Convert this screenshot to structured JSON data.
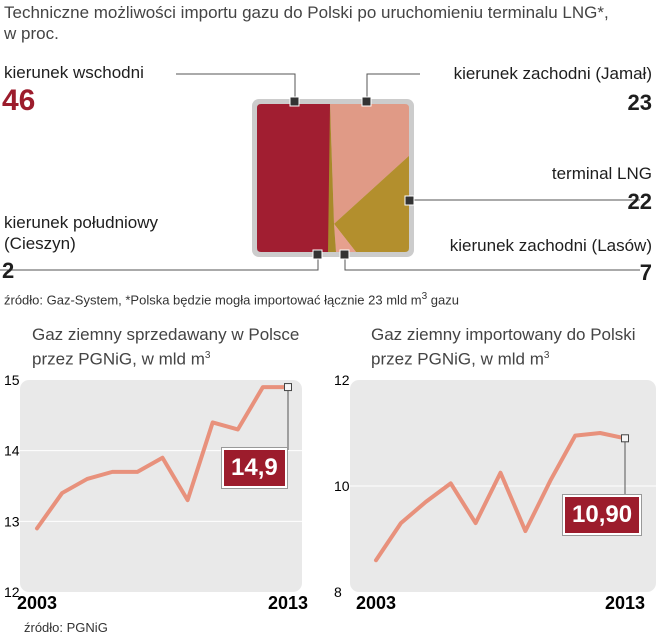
{
  "header": {
    "title_line1": "Techniczne możliwości importu gazu do Polski po uruchomieniu terminalu LNG*,",
    "title_line2": "w proc."
  },
  "pie": {
    "segments": [
      {
        "label": "kierunek wschodni",
        "value": 46,
        "color": "#a11e31"
      },
      {
        "label": "kierunek zachodni (Jamał)",
        "value": 23,
        "color": "#e09a86"
      },
      {
        "label": "terminal LNG",
        "value": 22,
        "color": "#b38f2d"
      },
      {
        "label": "kierunek zachodni (Lasów)",
        "value": 7,
        "color": "#e6a08e"
      },
      {
        "label": "kierunek południowy",
        "label_line2": "(Cieszyn)",
        "value": 2,
        "color": "#a88a2a"
      }
    ],
    "source_prefix": "źródło: Gaz-System, *Polska będzie mogła importować łącznie 23 mld m",
    "source_sup": "3",
    "source_suffix": " gazu"
  },
  "chart_data": [
    {
      "type": "line",
      "title_line1": "Gaz ziemny sprzedawany w Polsce",
      "title_line2": "przez PGNiG, w mld m",
      "title_sup": "3",
      "x": [
        2003,
        2004,
        2005,
        2006,
        2007,
        2008,
        2009,
        2010,
        2011,
        2012,
        2013
      ],
      "values": [
        12.9,
        13.4,
        13.6,
        13.7,
        13.7,
        13.9,
        13.3,
        14.4,
        14.3,
        14.9,
        14.9
      ],
      "ylim": [
        12,
        15
      ],
      "yticks": [
        "12",
        "13",
        "14",
        "15"
      ],
      "xticks": [
        "2003",
        "2013"
      ],
      "callout": "14,9",
      "line_color": "#e8917c"
    },
    {
      "type": "line",
      "title_line1": "Gaz ziemny importowany do Polski",
      "title_line2": "przez PGNiG, w mld m",
      "title_sup": "3",
      "x": [
        2003,
        2004,
        2005,
        2006,
        2007,
        2008,
        2009,
        2010,
        2011,
        2012,
        2013
      ],
      "values": [
        8.6,
        9.3,
        9.7,
        10.05,
        9.3,
        10.25,
        9.15,
        10.1,
        10.95,
        11.0,
        10.9
      ],
      "ylim": [
        8,
        12
      ],
      "yticks": [
        "8",
        "10",
        "12"
      ],
      "xticks": [
        "2003",
        "2013"
      ],
      "callout": "10,90",
      "line_color": "#e8917c"
    }
  ],
  "footer": {
    "source": "źródło: PGNiG"
  }
}
